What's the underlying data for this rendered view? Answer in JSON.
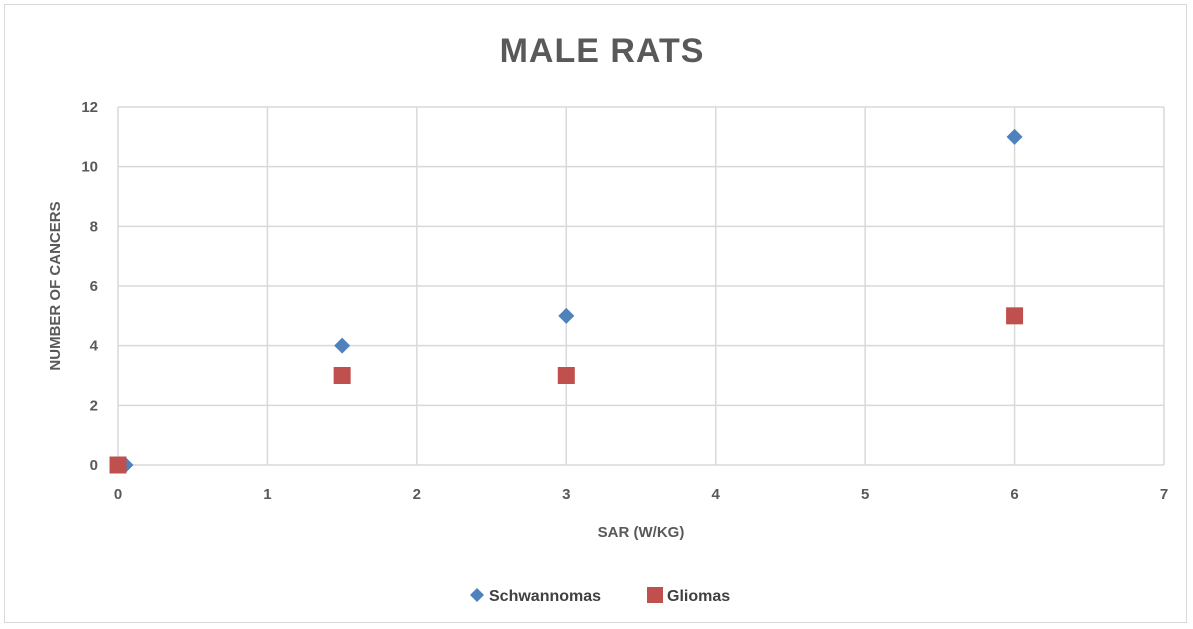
{
  "chart_data": {
    "type": "scatter",
    "title": "MALE RATS",
    "xlabel": "SAR (W/KG)",
    "ylabel": "NUMBER OF CANCERS",
    "xlim": [
      0,
      7
    ],
    "ylim": [
      0,
      12
    ],
    "x_ticks": [
      "0",
      "1",
      "2",
      "3",
      "4",
      "5",
      "6",
      "7"
    ],
    "y_ticks": [
      "0",
      "2",
      "4",
      "6",
      "8",
      "10",
      "12"
    ],
    "x_step": 1,
    "y_step": 2,
    "grid": true,
    "legend_position": "bottom",
    "series": [
      {
        "name": "Schwannomas",
        "marker": "diamond",
        "color": "#4f81bd",
        "points": [
          [
            0.05,
            0
          ],
          [
            1.5,
            4
          ],
          [
            3,
            5
          ],
          [
            6,
            11
          ]
        ]
      },
      {
        "name": "Gliomas",
        "marker": "square",
        "color": "#c0504d",
        "points": [
          [
            0,
            0
          ],
          [
            1.5,
            3
          ],
          [
            3,
            3
          ],
          [
            6,
            5
          ]
        ]
      }
    ]
  }
}
